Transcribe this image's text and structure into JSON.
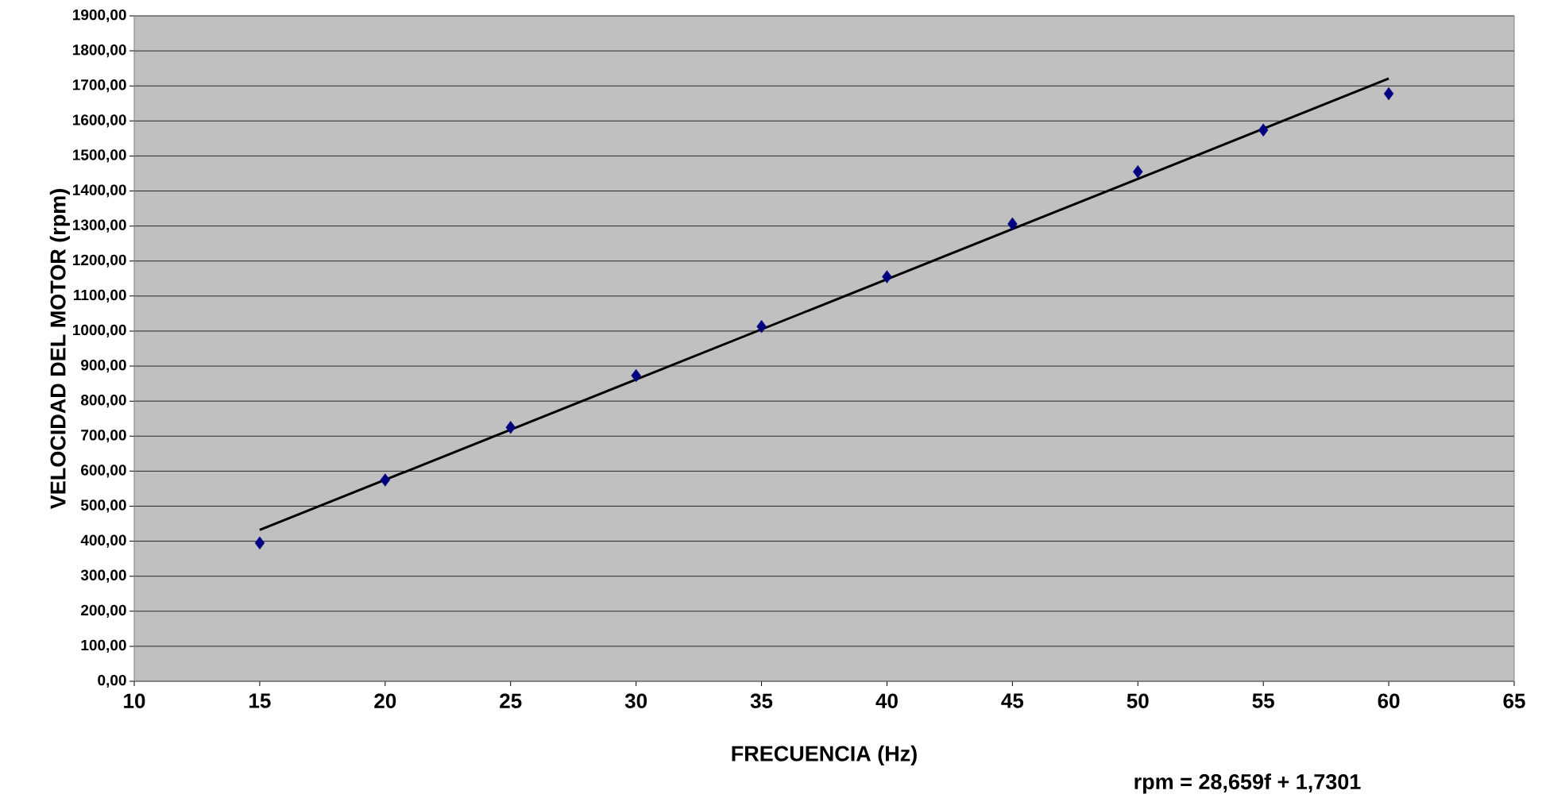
{
  "chart_data": {
    "type": "scatter",
    "xlabel": "FRECUENCIA (Hz)",
    "ylabel": "VELOCIDAD DEL MOTOR (rpm)",
    "annotations": [
      "rpm = 28,659f + 1,7301"
    ],
    "series": [
      {
        "color": "#000080",
        "marker": "diamond",
        "x": [
          15,
          20,
          25,
          30,
          35,
          40,
          45,
          50,
          55,
          60
        ],
        "values": [
          395,
          575,
          725,
          873,
          1013,
          1155,
          1306,
          1455,
          1574,
          1678
        ]
      },
      {
        "type": "line",
        "color": "#000000",
        "marker": "none",
        "x": [
          15,
          60
        ],
        "values": [
          432,
          1721
        ]
      }
    ],
    "xlim": [
      10,
      65
    ],
    "xticks": [
      10,
      15,
      20,
      25,
      30,
      35,
      40,
      45,
      50,
      55,
      60,
      65
    ],
    "ylim": [
      0,
      1900
    ],
    "yticks": [
      {
        "value": 0,
        "label": "0,00"
      },
      {
        "value": 100,
        "label": "100,00"
      },
      {
        "value": 200,
        "label": "200,00"
      },
      {
        "value": 300,
        "label": "300,00"
      },
      {
        "value": 400,
        "label": "400,00"
      },
      {
        "value": 500,
        "label": "500,00"
      },
      {
        "value": 600,
        "label": "600,00"
      },
      {
        "value": 700,
        "label": "700,00"
      },
      {
        "value": 800,
        "label": "800,00"
      },
      {
        "value": 900,
        "label": "900,00"
      },
      {
        "value": 1000,
        "label": "1000,00"
      },
      {
        "value": 1100,
        "label": "1100,00"
      },
      {
        "value": 1200,
        "label": "1200,00"
      },
      {
        "value": 1300,
        "label": "1300,00"
      },
      {
        "value": 1400,
        "label": "1400,00"
      },
      {
        "value": 1500,
        "label": "1500,00"
      },
      {
        "value": 1600,
        "label": "1600,00"
      },
      {
        "value": 1700,
        "label": "1700,00"
      },
      {
        "value": 1800,
        "label": "1800,00"
      },
      {
        "value": 1900,
        "label": "1900,00"
      }
    ],
    "grid": "y"
  }
}
